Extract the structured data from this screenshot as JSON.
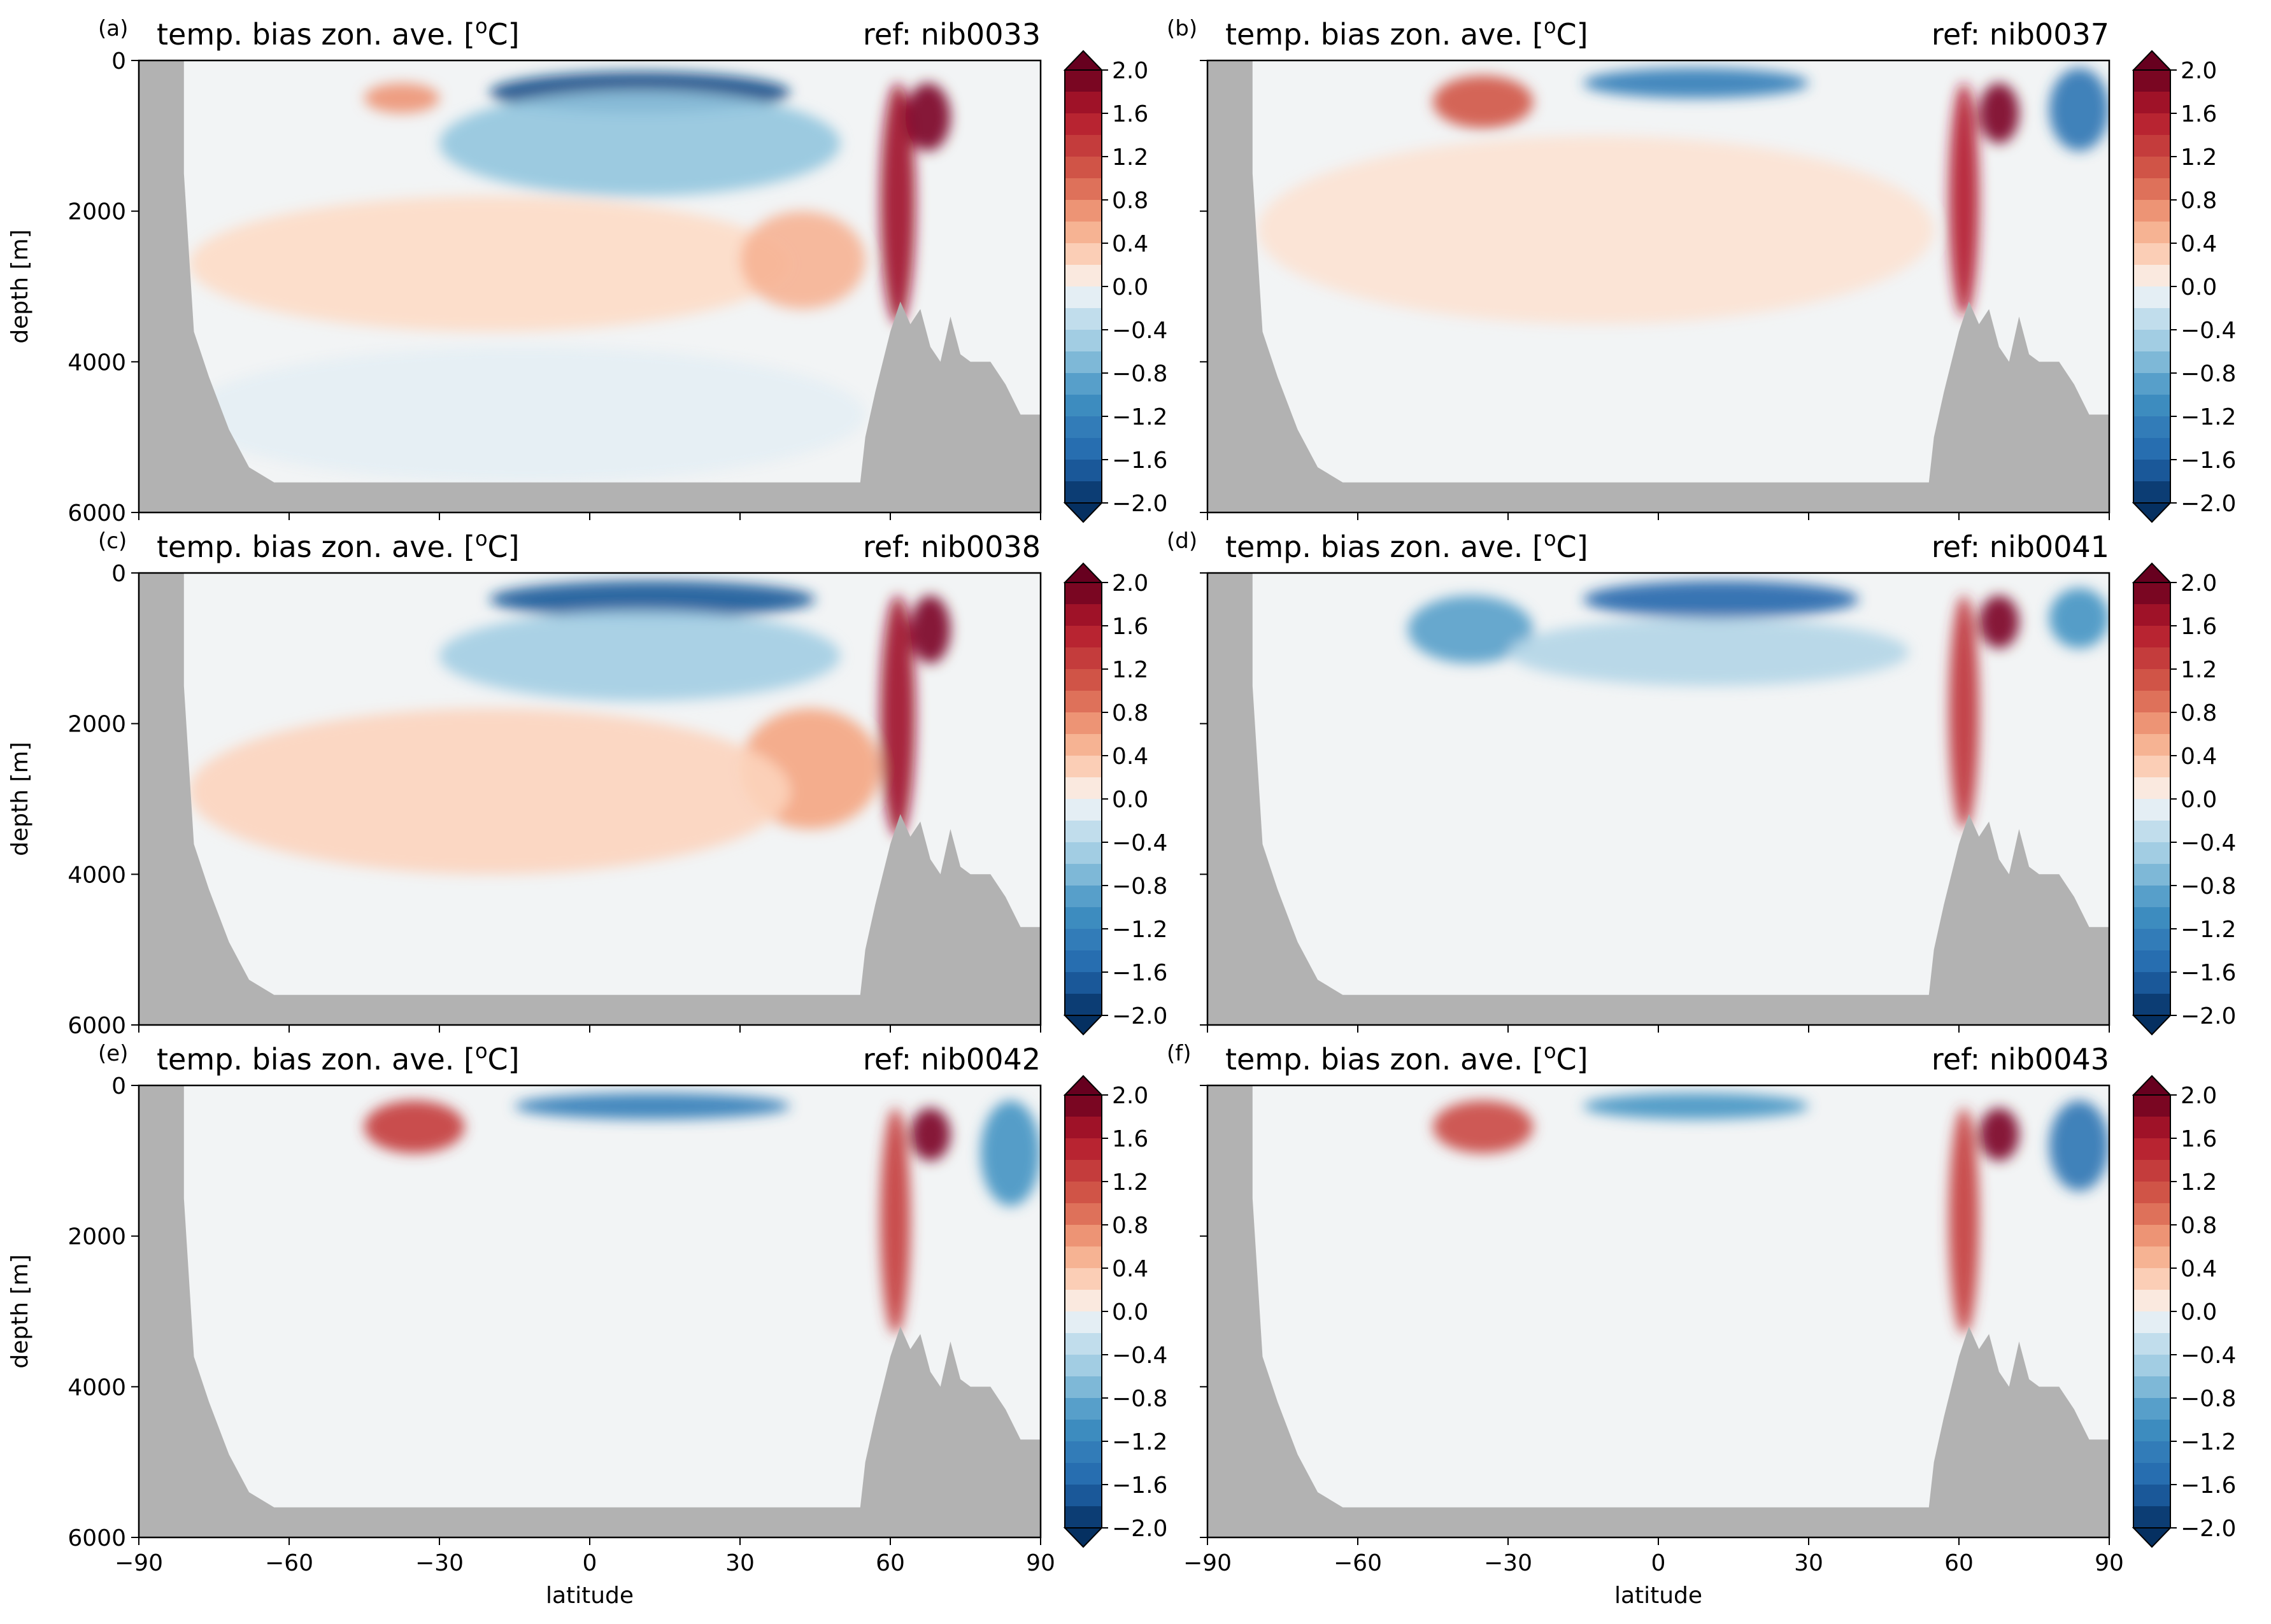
{
  "figure": {
    "panel_title": "temp. bias zon. ave. [",
    "panel_title_sup": "o",
    "panel_title_end": "C]",
    "ylabel": "depth [m]",
    "xlabel": "latitude"
  },
  "colors": {
    "land": "#b2b2b2",
    "colormap": "RdBu_r",
    "palette": [
      "#053061",
      "#2166ac",
      "#4393c3",
      "#92c5de",
      "#d1e5f0",
      "#f7f7f7",
      "#fddbc7",
      "#f4a582",
      "#d6604d",
      "#b2182b",
      "#67001f"
    ]
  },
  "chart_data": [
    {
      "type": "heatmap",
      "panel": "(a)",
      "ref_label": "ref: nib0033",
      "title": "temp. bias zon. ave. [oC]",
      "xlabel": "",
      "ylabel": "depth [m]",
      "xlim": [
        -90,
        90
      ],
      "ylim": [
        6000,
        0
      ],
      "xticks": [
        -90,
        -60,
        -30,
        0,
        30,
        60,
        90
      ],
      "yticks": [
        0,
        2000,
        4000,
        6000
      ],
      "colorbar": {
        "ticks": [
          "2.0",
          "1.6",
          "1.2",
          "0.8",
          "0.4",
          "0.0",
          "−0.4",
          "−0.8",
          "−1.2",
          "−1.6",
          "−2.0"
        ],
        "range": [
          -2.0,
          2.0
        ],
        "step": 0.2,
        "extend": "both"
      },
      "features": [
        {
          "lat": [
            -20,
            40
          ],
          "depth": [
            150,
            700
          ],
          "bias": -1.8
        },
        {
          "lat": [
            -30,
            50
          ],
          "depth": [
            400,
            1800
          ],
          "bias": -0.6
        },
        {
          "lat": [
            -80,
            40
          ],
          "depth": [
            1800,
            3600
          ],
          "bias": 0.2
        },
        {
          "lat": [
            30,
            55
          ],
          "depth": [
            2000,
            3300
          ],
          "bias": 0.5
        },
        {
          "lat": [
            58,
            65
          ],
          "depth": [
            300,
            3500
          ],
          "bias": 1.7
        },
        {
          "lat": [
            63,
            72
          ],
          "depth": [
            300,
            1200
          ],
          "bias": 1.9
        },
        {
          "lat": [
            -45,
            -30
          ],
          "depth": [
            300,
            700
          ],
          "bias": 0.7
        },
        {
          "lat": [
            -80,
            55
          ],
          "depth": [
            3800,
            5600
          ],
          "bias": -0.1
        }
      ]
    },
    {
      "type": "heatmap",
      "panel": "(b)",
      "ref_label": "ref: nib0037",
      "title": "temp. bias zon. ave. [oC]",
      "xlabel": "",
      "ylabel": "",
      "xlim": [
        -90,
        90
      ],
      "ylim": [
        6000,
        0
      ],
      "xticks": [
        -90,
        -60,
        -30,
        0,
        30,
        60,
        90
      ],
      "colorbar": {
        "ticks": [
          "2.0",
          "1.6",
          "1.2",
          "0.8",
          "0.4",
          "0.0",
          "−0.4",
          "−0.8",
          "−1.2",
          "−1.6",
          "−2.0"
        ],
        "range": [
          -2.0,
          2.0
        ],
        "step": 0.2,
        "extend": "both"
      },
      "features": [
        {
          "lat": [
            -45,
            -25
          ],
          "depth": [
            200,
            900
          ],
          "bias": 1.1
        },
        {
          "lat": [
            -15,
            30
          ],
          "depth": [
            100,
            500
          ],
          "bias": -1.3
        },
        {
          "lat": [
            58,
            64
          ],
          "depth": [
            300,
            3400
          ],
          "bias": 1.6
        },
        {
          "lat": [
            64,
            72
          ],
          "depth": [
            300,
            1100
          ],
          "bias": 1.9
        },
        {
          "lat": [
            78,
            90
          ],
          "depth": [
            100,
            1200
          ],
          "bias": -1.4
        },
        {
          "lat": [
            -80,
            55
          ],
          "depth": [
            1000,
            3500
          ],
          "bias": 0.15
        }
      ]
    },
    {
      "type": "heatmap",
      "panel": "(c)",
      "ref_label": "ref: nib0038",
      "title": "temp. bias zon. ave. [oC]",
      "xlabel": "",
      "ylabel": "depth [m]",
      "xlim": [
        -90,
        90
      ],
      "ylim": [
        6000,
        0
      ],
      "xticks": [
        -90,
        -60,
        -30,
        0,
        30,
        60,
        90
      ],
      "yticks": [
        0,
        2000,
        4000,
        6000
      ],
      "colorbar": {
        "ticks": [
          "2.0",
          "1.6",
          "1.2",
          "0.8",
          "0.4",
          "0.0",
          "−0.4",
          "−0.8",
          "−1.2",
          "−1.6",
          "−2.0"
        ],
        "range": [
          -2.0,
          2.0
        ],
        "step": 0.2,
        "extend": "both"
      },
      "features": [
        {
          "lat": [
            -20,
            45
          ],
          "depth": [
            100,
            600
          ],
          "bias": -1.7
        },
        {
          "lat": [
            -30,
            50
          ],
          "depth": [
            500,
            1700
          ],
          "bias": -0.5
        },
        {
          "lat": [
            30,
            58
          ],
          "depth": [
            1800,
            3400
          ],
          "bias": 0.6
        },
        {
          "lat": [
            58,
            65
          ],
          "depth": [
            300,
            3500
          ],
          "bias": 1.7
        },
        {
          "lat": [
            64,
            72
          ],
          "depth": [
            300,
            1200
          ],
          "bias": 1.9
        },
        {
          "lat": [
            -80,
            40
          ],
          "depth": [
            1800,
            4000
          ],
          "bias": 0.25
        }
      ]
    },
    {
      "type": "heatmap",
      "panel": "(d)",
      "ref_label": "ref: nib0041",
      "title": "temp. bias zon. ave. [oC]",
      "xlabel": "",
      "ylabel": "",
      "xlim": [
        -90,
        90
      ],
      "ylim": [
        6000,
        0
      ],
      "xticks": [
        -90,
        -60,
        -30,
        0,
        30,
        60,
        90
      ],
      "colorbar": {
        "ticks": [
          "2.0",
          "1.6",
          "1.2",
          "0.8",
          "0.4",
          "0.0",
          "−0.4",
          "−0.8",
          "−1.2",
          "−1.6",
          "−2.0"
        ],
        "range": [
          -2.0,
          2.0
        ],
        "step": 0.2,
        "extend": "both"
      },
      "features": [
        {
          "lat": [
            -50,
            -25
          ],
          "depth": [
            300,
            1200
          ],
          "bias": -0.9
        },
        {
          "lat": [
            -15,
            40
          ],
          "depth": [
            100,
            600
          ],
          "bias": -1.6
        },
        {
          "lat": [
            -30,
            50
          ],
          "depth": [
            600,
            1500
          ],
          "bias": -0.4
        },
        {
          "lat": [
            58,
            64
          ],
          "depth": [
            300,
            3400
          ],
          "bias": 1.4
        },
        {
          "lat": [
            64,
            72
          ],
          "depth": [
            300,
            1000
          ],
          "bias": 1.9
        },
        {
          "lat": [
            78,
            90
          ],
          "depth": [
            200,
            1000
          ],
          "bias": -1.0
        }
      ]
    },
    {
      "type": "heatmap",
      "panel": "(e)",
      "ref_label": "ref: nib0042",
      "title": "temp. bias zon. ave. [oC]",
      "xlabel": "latitude",
      "ylabel": "depth [m]",
      "xlim": [
        -90,
        90
      ],
      "ylim": [
        6000,
        0
      ],
      "xticks": [
        -90,
        -60,
        -30,
        0,
        30,
        60,
        90
      ],
      "yticks": [
        0,
        2000,
        4000,
        6000
      ],
      "colorbar": {
        "ticks": [
          "2.0",
          "1.6",
          "1.2",
          "0.8",
          "0.4",
          "0.0",
          "−0.4",
          "−0.8",
          "−1.2",
          "−1.6",
          "−2.0"
        ],
        "range": [
          -2.0,
          2.0
        ],
        "step": 0.2,
        "extend": "both"
      },
      "features": [
        {
          "lat": [
            -45,
            -25
          ],
          "depth": [
            200,
            900
          ],
          "bias": 1.3
        },
        {
          "lat": [
            -15,
            40
          ],
          "depth": [
            100,
            450
          ],
          "bias": -1.3
        },
        {
          "lat": [
            58,
            64
          ],
          "depth": [
            300,
            3300
          ],
          "bias": 1.3
        },
        {
          "lat": [
            64,
            72
          ],
          "depth": [
            300,
            1000
          ],
          "bias": 1.9
        },
        {
          "lat": [
            78,
            90
          ],
          "depth": [
            200,
            1600
          ],
          "bias": -1.0
        }
      ]
    },
    {
      "type": "heatmap",
      "panel": "(f)",
      "ref_label": "ref: nib0043",
      "title": "temp. bias zon. ave. [oC]",
      "xlabel": "latitude",
      "ylabel": "",
      "xlim": [
        -90,
        90
      ],
      "ylim": [
        6000,
        0
      ],
      "xticks": [
        -90,
        -60,
        -30,
        0,
        30,
        60,
        90
      ],
      "colorbar": {
        "ticks": [
          "2.0",
          "1.6",
          "1.2",
          "0.8",
          "0.4",
          "0.0",
          "−0.4",
          "−0.8",
          "−1.2",
          "−1.6",
          "−2.0"
        ],
        "range": [
          -2.0,
          2.0
        ],
        "step": 0.2,
        "extend": "both"
      },
      "features": [
        {
          "lat": [
            -45,
            -25
          ],
          "depth": [
            200,
            900
          ],
          "bias": 1.2
        },
        {
          "lat": [
            -15,
            30
          ],
          "depth": [
            100,
            450
          ],
          "bias": -1.0
        },
        {
          "lat": [
            58,
            64
          ],
          "depth": [
            300,
            3300
          ],
          "bias": 1.3
        },
        {
          "lat": [
            64,
            72
          ],
          "depth": [
            300,
            1000
          ],
          "bias": 1.9
        },
        {
          "lat": [
            78,
            90
          ],
          "depth": [
            200,
            1400
          ],
          "bias": -1.4
        }
      ]
    }
  ]
}
